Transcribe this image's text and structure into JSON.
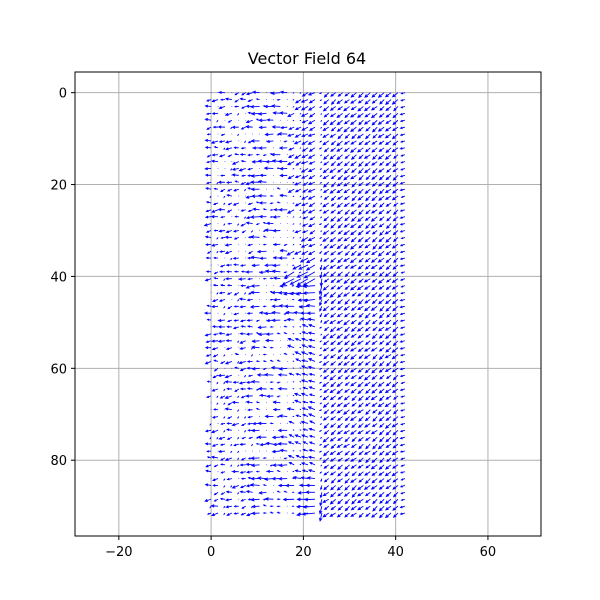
{
  "chart_data": {
    "type": "quiver",
    "title": "Vector Field 64",
    "xlabel": "",
    "ylabel": "",
    "xlim": [
      -29.5,
      71.5
    ],
    "ylim": [
      96.5,
      -4.5
    ],
    "y_inverted": true,
    "x_ticks": [
      -20,
      0,
      20,
      40,
      60
    ],
    "y_ticks": [
      0,
      20,
      40,
      60,
      80
    ],
    "x_tick_labels": [
      "−20",
      "0",
      "20",
      "40",
      "60"
    ],
    "y_tick_labels": [
      "0",
      "20",
      "40",
      "60",
      "80"
    ],
    "grid": true,
    "arrow_color": "#0000ff",
    "grid_spacing": 1.5,
    "x_range": [
      0,
      42
    ],
    "y_range": [
      0,
      92
    ],
    "vector_field_description": "Left strip x 0-18: sparse small arrows pointing mostly left; boundary x ~18-24: strong converging arrows near y 40 and y 90; right block x 24-42: dense uniform arrows pointing down-left"
  },
  "colors": {
    "arrow": "#0000ff",
    "grid": "#b0b0b0",
    "axis": "#000000",
    "background": "#ffffff"
  }
}
